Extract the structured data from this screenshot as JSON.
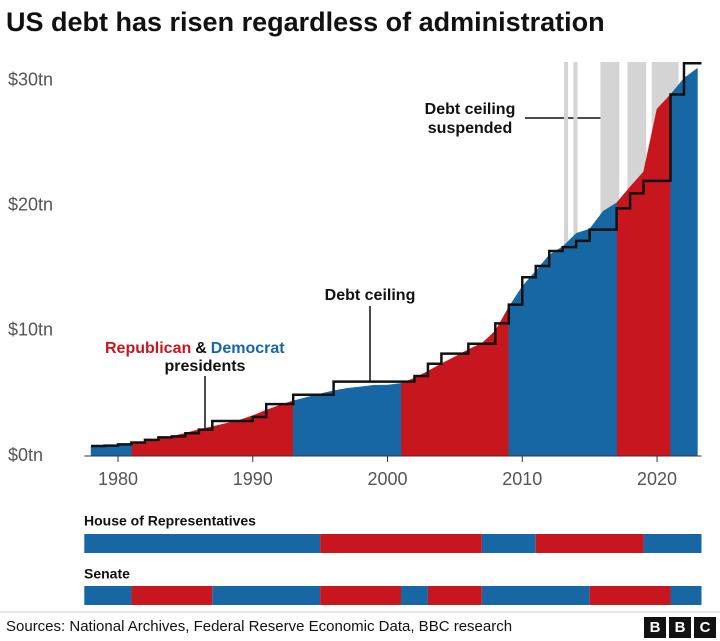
{
  "chart_data": {
    "type": "area",
    "title": "US debt has risen regardless of administration",
    "xlim": [
      1977.5,
      2023.3
    ],
    "ylim": [
      0,
      31.5
    ],
    "xticks": [
      1980,
      1990,
      2000,
      2010,
      2020
    ],
    "yticks": [
      {
        "value": 0,
        "label": "$0tn"
      },
      {
        "value": 10,
        "label": "$10tn"
      },
      {
        "value": 20,
        "label": "$20tn"
      },
      {
        "value": 30,
        "label": "$30tn"
      }
    ],
    "x": [
      1978,
      1979,
      1980,
      1981,
      1982,
      1983,
      1984,
      1985,
      1986,
      1987,
      1988,
      1989,
      1990,
      1991,
      1992,
      1993,
      1994,
      1995,
      1996,
      1997,
      1998,
      1999,
      2000,
      2001,
      2002,
      2003,
      2004,
      2005,
      2006,
      2007,
      2008,
      2009,
      2010,
      2011,
      2012,
      2013,
      2014,
      2015,
      2016,
      2017,
      2018,
      2019,
      2020,
      2021,
      2022,
      2023
    ],
    "values": [
      0.78,
      0.83,
      0.91,
      1.0,
      1.14,
      1.37,
      1.57,
      1.82,
      2.12,
      2.35,
      2.6,
      2.86,
      3.23,
      3.67,
      4.06,
      4.41,
      4.69,
      4.97,
      5.22,
      5.41,
      5.53,
      5.66,
      5.67,
      5.81,
      6.23,
      6.78,
      7.38,
      7.93,
      8.51,
      9.01,
      10.0,
      11.9,
      13.56,
      14.79,
      16.07,
      16.74,
      17.8,
      18.15,
      19.57,
      20.24,
      21.52,
      22.72,
      27.75,
      28.9,
      30.2,
      31.0
    ],
    "series": [
      {
        "name": "Republican",
        "color": "#c8161e",
        "periods": [
          [
            1981,
            1993
          ],
          [
            2001,
            2009
          ],
          [
            2017,
            2021
          ]
        ]
      },
      {
        "name": "Democrat",
        "color": "#1767a5",
        "periods": [
          [
            1978,
            1981
          ],
          [
            1993,
            2001
          ],
          [
            2009,
            2017
          ],
          [
            2021,
            2023
          ]
        ]
      }
    ],
    "ceiling": {
      "x": [
        1978,
        1979,
        1980,
        1981,
        1982,
        1983,
        1984,
        1985,
        1986,
        1987,
        1990,
        1991,
        1993,
        1996,
        2002,
        2003,
        2004,
        2006,
        2008,
        2009,
        2010,
        2011,
        2012,
        2013,
        2014,
        2015,
        2017,
        2018,
        2019,
        2021,
        2022,
        2023.3
      ],
      "values": [
        0.8,
        0.83,
        0.93,
        1.08,
        1.29,
        1.49,
        1.57,
        1.82,
        2.11,
        2.8,
        3.12,
        4.15,
        4.9,
        5.95,
        6.4,
        7.38,
        8.18,
        8.97,
        10.6,
        12.1,
        14.29,
        15.19,
        16.39,
        16.7,
        17.2,
        18.1,
        19.8,
        21.0,
        22.0,
        28.9,
        31.4,
        31.4
      ]
    },
    "suspensions": [
      [
        2013.1,
        2013.4
      ],
      [
        2013.8,
        2014.1
      ],
      [
        2015.8,
        2017.2
      ],
      [
        2017.8,
        2019.2
      ],
      [
        2019.6,
        2021.6
      ]
    ],
    "annotations": {
      "suspended": [
        "Debt ceiling",
        "suspended"
      ],
      "ceiling": "Debt ceiling",
      "amp": "&",
      "presidents": "presidents"
    },
    "congress": [
      {
        "label": "House of Representatives",
        "segments": [
          {
            "start": 1977.5,
            "end": 1995,
            "color": "#1767a5"
          },
          {
            "start": 1995,
            "end": 2007,
            "color": "#c8161e"
          },
          {
            "start": 2007,
            "end": 2011,
            "color": "#1767a5"
          },
          {
            "start": 2011,
            "end": 2019,
            "color": "#c8161e"
          },
          {
            "start": 2019,
            "end": 2023.3,
            "color": "#1767a5"
          }
        ]
      },
      {
        "label": "Senate",
        "segments": [
          {
            "start": 1977.5,
            "end": 1981,
            "color": "#1767a5"
          },
          {
            "start": 1981,
            "end": 1987,
            "color": "#c8161e"
          },
          {
            "start": 1987,
            "end": 1995,
            "color": "#1767a5"
          },
          {
            "start": 1995,
            "end": 2001,
            "color": "#c8161e"
          },
          {
            "start": 2001,
            "end": 2003,
            "color": "#1767a5"
          },
          {
            "start": 2003,
            "end": 2007,
            "color": "#c8161e"
          },
          {
            "start": 2007,
            "end": 2015,
            "color": "#1767a5"
          },
          {
            "start": 2015,
            "end": 2021,
            "color": "#c8161e"
          },
          {
            "start": 2021,
            "end": 2023.3,
            "color": "#1767a5"
          }
        ]
      }
    ],
    "source": "Sources: National Archives, Federal Reserve Economic Data, BBC research",
    "logo": [
      "B",
      "B",
      "C"
    ]
  }
}
